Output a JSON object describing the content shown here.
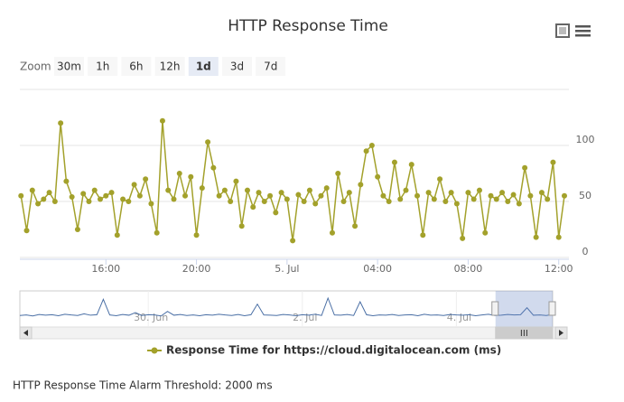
{
  "chart_data": [
    {
      "type": "line",
      "title": "HTTP Response Time",
      "x": [
        12.25,
        12.5,
        12.75,
        13,
        13.25,
        13.5,
        13.75,
        14,
        14.25,
        14.5,
        14.75,
        15,
        15.25,
        15.5,
        15.75,
        16,
        16.25,
        16.5,
        16.75,
        17,
        17.25,
        17.5,
        17.75,
        18,
        18.25,
        18.5,
        18.75,
        19,
        19.25,
        19.5,
        19.75,
        20,
        20.25,
        20.5,
        20.75,
        21,
        21.25,
        21.5,
        21.75,
        22,
        22.25,
        22.5,
        22.75,
        23,
        23.25,
        23.5,
        23.75,
        24,
        24.25,
        24.5,
        24.75,
        25,
        25.25,
        25.5,
        25.75,
        26,
        26.25,
        26.5,
        26.75,
        27,
        27.25,
        27.5,
        27.75,
        28,
        28.25,
        28.5,
        28.75,
        29,
        29.25,
        29.5,
        29.75,
        30,
        30.25,
        30.5,
        30.75,
        31,
        31.25,
        31.5,
        31.75,
        32,
        32.25,
        32.5,
        32.75,
        33,
        33.25,
        33.5,
        33.75,
        34,
        34.25,
        34.5,
        34.75,
        35,
        35.25,
        35.5,
        35.75,
        36,
        36.25
      ],
      "series": [
        {
          "name": "Response Time for https://cloud.digitalocean.com (ms)",
          "color": "#a3a12b",
          "values": [
            55,
            24,
            60,
            48,
            52,
            58,
            50,
            120,
            68,
            54,
            25,
            57,
            50,
            60,
            52,
            55,
            58,
            20,
            52,
            50,
            65,
            55,
            70,
            48,
            22,
            122,
            60,
            52,
            75,
            55,
            72,
            20,
            62,
            103,
            80,
            55,
            60,
            50,
            68,
            28,
            60,
            45,
            58,
            50,
            55,
            40,
            58,
            52,
            15,
            56,
            50,
            60,
            48,
            55,
            62,
            22,
            75,
            50,
            58,
            28,
            65,
            95,
            100,
            72,
            55,
            50,
            85,
            52,
            60,
            83,
            55,
            20,
            58,
            52,
            70,
            50,
            58,
            48,
            17,
            58,
            52,
            60,
            22,
            55,
            52,
            58,
            50,
            56,
            48,
            80,
            55,
            18,
            58,
            52,
            85,
            18,
            55
          ]
        }
      ],
      "xlim": [
        12.2,
        36.45
      ],
      "xticks": [
        {
          "value": 16,
          "label": "16:00"
        },
        {
          "value": 20,
          "label": "20:00"
        },
        {
          "value": 24,
          "label": "5. Jul"
        },
        {
          "value": 28,
          "label": "04:00"
        },
        {
          "value": 32,
          "label": "08:00"
        },
        {
          "value": 36,
          "label": "12:00"
        }
      ],
      "ylim": [
        0,
        150
      ],
      "yticks": [
        0,
        50,
        100
      ],
      "grid": true,
      "legend": "bottom"
    },
    {
      "type": "line",
      "x": [
        -136,
        -134,
        -132,
        -130,
        -128,
        -126,
        -124,
        -122,
        -120,
        -118,
        -116,
        -114,
        -112,
        -110,
        -108,
        -106,
        -104,
        -102,
        -100,
        -98,
        -96,
        -94,
        -92,
        -90,
        -88,
        -86,
        -84,
        -82,
        -80,
        -78,
        -76,
        -74,
        -72,
        -70,
        -68,
        -66,
        -64,
        -62,
        -60,
        -58,
        -56,
        -54,
        -52,
        -50,
        -48,
        -46,
        -44,
        -42,
        -40,
        -38,
        -36,
        -34,
        -32,
        -30,
        -28,
        -26,
        -24,
        -22,
        -20,
        -18,
        -16,
        -14,
        -12,
        -10,
        -8,
        -6,
        -4,
        -2,
        0,
        2,
        4,
        6,
        8,
        10,
        12,
        14,
        16,
        18,
        20,
        22,
        24,
        26,
        28,
        30
      ],
      "series": [
        {
          "color": "#4a6fa5",
          "values": [
            48,
            50,
            46,
            52,
            49,
            51,
            47,
            53,
            50,
            48,
            55,
            49,
            51,
            115,
            50,
            47,
            52,
            49,
            60,
            48,
            51,
            50,
            46,
            65,
            49,
            52,
            48,
            50,
            47,
            51,
            49,
            53,
            50,
            48,
            52,
            47,
            51,
            95,
            50,
            49,
            48,
            52,
            50,
            47,
            51,
            49,
            53,
            48,
            120,
            50,
            49,
            52,
            48,
            105,
            51,
            47,
            50,
            49,
            52,
            48,
            50,
            51,
            47,
            53,
            49,
            50,
            48,
            52,
            50,
            49,
            51,
            47,
            50,
            53,
            48,
            49,
            52,
            50,
            51,
            80,
            49,
            50,
            48,
            52
          ]
        }
      ],
      "xlim": [
        -136,
        30
      ],
      "xticks": [
        {
          "value": -96,
          "label": "30. Jun"
        },
        {
          "value": -48,
          "label": "2. Jul"
        },
        {
          "value": 0,
          "label": "4. Jul"
        }
      ],
      "ylim": [
        0,
        150
      ]
    }
  ],
  "range_selector": {
    "label": "Zoom",
    "buttons": [
      "30m",
      "1h",
      "6h",
      "12h",
      "1d",
      "3d",
      "7d"
    ],
    "selected": 4
  },
  "footer": "HTTP Response Time Alarm Threshold: 2000 ms"
}
